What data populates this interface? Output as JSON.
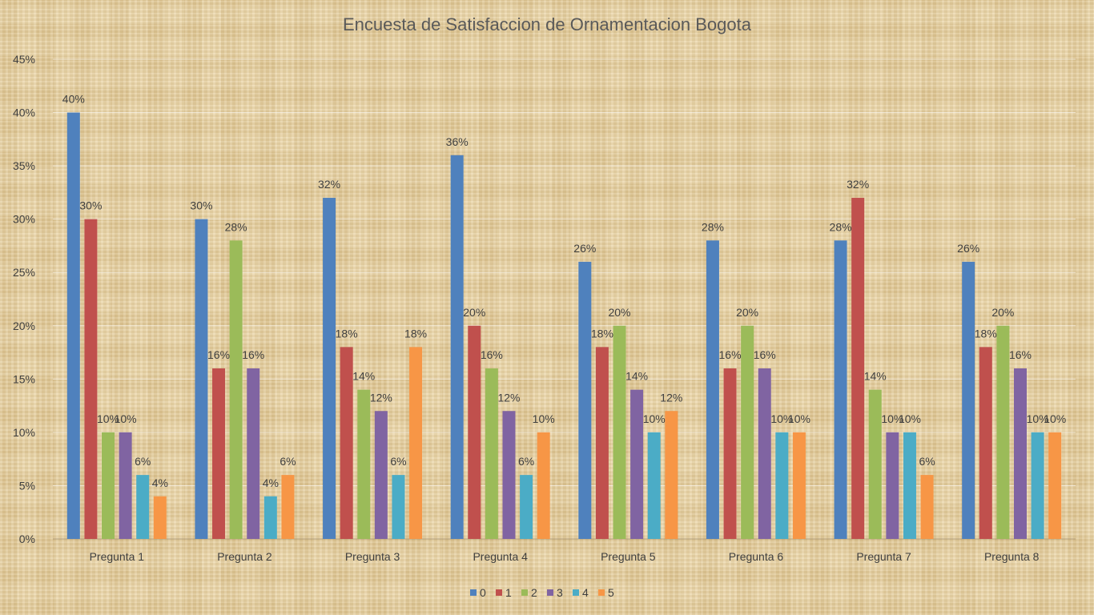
{
  "chart_data": {
    "type": "bar",
    "title": "Encuesta de Satisfaccion de Ornamentacion Bogota",
    "xlabel": "",
    "ylabel": "",
    "ylim": [
      0,
      0.45
    ],
    "y_ticks": [
      0,
      0.05,
      0.1,
      0.15,
      0.2,
      0.25,
      0.3,
      0.35,
      0.4,
      0.45
    ],
    "y_tick_labels": [
      "0%",
      "5%",
      "10%",
      "15%",
      "20%",
      "25%",
      "30%",
      "35%",
      "40%",
      "45%"
    ],
    "grid": true,
    "legend_position": "bottom",
    "categories": [
      "Pregunta 1",
      "Pregunta 2",
      "Pregunta 3",
      "Pregunta 4",
      "Pregunta 5",
      "Pregunta 6",
      "Pregunta 7",
      "Pregunta 8"
    ],
    "series": [
      {
        "name": "0",
        "color": "#4f81bd",
        "values": [
          0.4,
          0.3,
          0.32,
          0.36,
          0.26,
          0.28,
          0.28,
          0.26
        ],
        "labels": [
          "40%",
          "30%",
          "32%",
          "36%",
          "26%",
          "28%",
          "28%",
          "26%"
        ]
      },
      {
        "name": "1",
        "color": "#c0504d",
        "values": [
          0.3,
          0.16,
          0.18,
          0.2,
          0.18,
          0.16,
          0.32,
          0.18
        ],
        "labels": [
          "30%",
          "16%",
          "18%",
          "20%",
          "18%",
          "16%",
          "32%",
          "18%"
        ]
      },
      {
        "name": "2",
        "color": "#9bbb59",
        "values": [
          0.1,
          0.28,
          0.14,
          0.16,
          0.2,
          0.2,
          0.14,
          0.2
        ],
        "labels": [
          "10%",
          "28%",
          "14%",
          "16%",
          "20%",
          "20%",
          "14%",
          "20%"
        ]
      },
      {
        "name": "3",
        "color": "#8064a2",
        "values": [
          0.1,
          0.16,
          0.12,
          0.12,
          0.14,
          0.16,
          0.1,
          0.16
        ],
        "labels": [
          "10%",
          "16%",
          "12%",
          "12%",
          "14%",
          "16%",
          "10%",
          "16%"
        ]
      },
      {
        "name": "4",
        "color": "#4bacc6",
        "values": [
          0.06,
          0.04,
          0.06,
          0.06,
          0.1,
          0.1,
          0.1,
          0.1
        ],
        "labels": [
          "6%",
          "4%",
          "6%",
          "6%",
          "10%",
          "10%",
          "10%",
          "10%"
        ]
      },
      {
        "name": "5",
        "color": "#f79646",
        "values": [
          0.04,
          0.06,
          0.18,
          0.1,
          0.12,
          0.1,
          0.06,
          0.1
        ],
        "labels": [
          "4%",
          "6%",
          "18%",
          "10%",
          "12%",
          "10%",
          "6%",
          "10%"
        ]
      }
    ]
  }
}
